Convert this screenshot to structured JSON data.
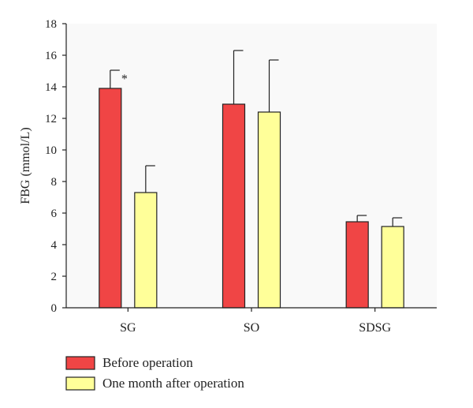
{
  "chart_data": {
    "type": "bar",
    "title": "",
    "xlabel": "",
    "ylabel": "FBG (mmol/L)",
    "ylim": [
      0,
      18
    ],
    "yticks": [
      0,
      2,
      4,
      6,
      8,
      10,
      12,
      14,
      16,
      18
    ],
    "categories": [
      "SG",
      "SO",
      "SDSG"
    ],
    "series": [
      {
        "name": "Before operation",
        "color": "#f04545",
        "values": [
          13.9,
          12.9,
          5.45
        ],
        "error": [
          1.15,
          3.4,
          0.4
        ]
      },
      {
        "name": "One month after operation",
        "color": "#ffff99",
        "values": [
          7.3,
          12.4,
          5.15
        ],
        "error": [
          1.7,
          3.3,
          0.55
        ]
      }
    ],
    "annotations": [
      {
        "text": "*",
        "category": "SG",
        "series": "Before operation"
      }
    ],
    "legend_position": "bottom-left",
    "grid": false
  }
}
